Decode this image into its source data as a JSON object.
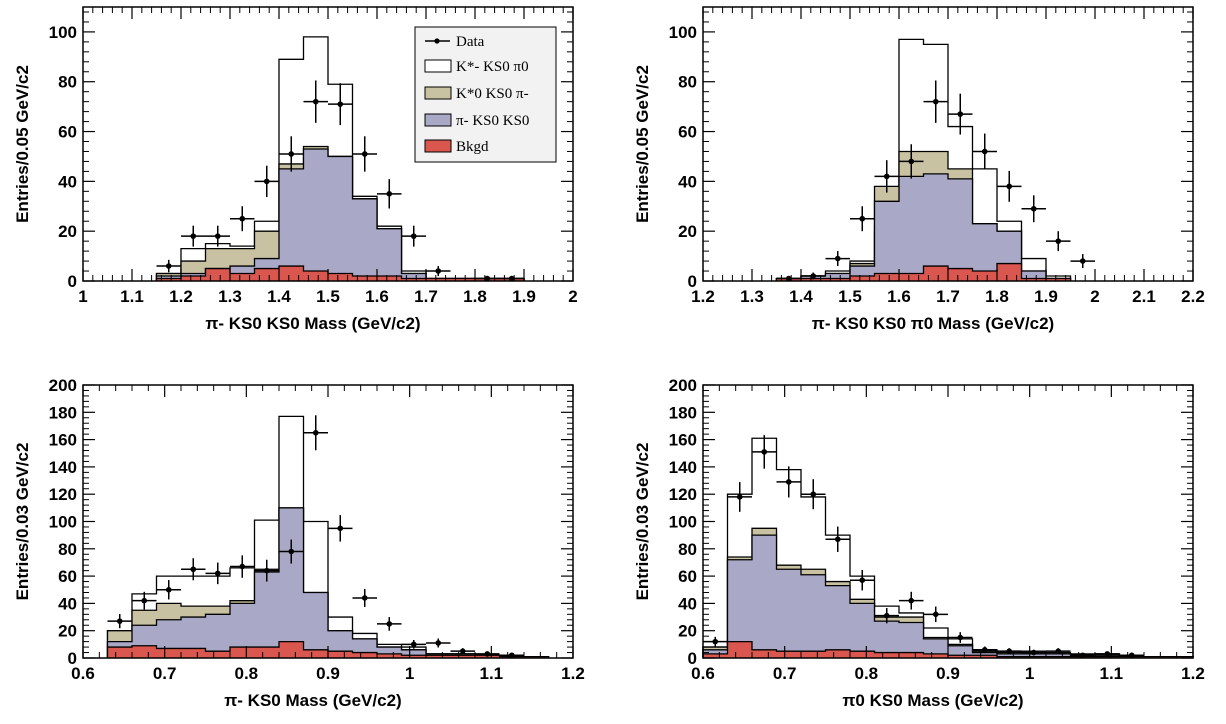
{
  "colors": {
    "total": "#ffffff",
    "kstar0": "#c8c2a2",
    "pikk": "#a9a8c6",
    "bkgd": "#d9574f",
    "line": "#000000"
  },
  "legend": {
    "data": "Data",
    "kstarminus": "K*- KS0 π0",
    "kstar0": "K*0 KS0 π-",
    "pikk": "π- KS0 KS0",
    "bkgd": "Bkgd"
  },
  "chart_data": [
    {
      "type": "bar",
      "panel": "top-left",
      "xlabel": "π- KS0 KS0 Mass (GeV/c2)",
      "ylabel": "Entries/0.05 GeV/c2",
      "xlim": [
        1.0,
        2.0
      ],
      "ylim": [
        0,
        110
      ],
      "xticks": [
        1,
        1.1,
        1.2,
        1.3,
        1.4,
        1.5,
        1.6,
        1.7,
        1.8,
        1.9,
        2
      ],
      "xtick_labels": [
        "1",
        "1.1",
        "1.2",
        "1.3",
        "1.4",
        "1.5",
        "1.6",
        "1.7",
        "1.8",
        "1.9",
        "2"
      ],
      "yticks": [
        0,
        20,
        40,
        60,
        80,
        100
      ],
      "ytick_labels": [
        "0",
        "20",
        "40",
        "60",
        "80",
        "100"
      ],
      "legend_position": "top-right",
      "bin_width": 0.05,
      "bins_start": 1.15,
      "series": [
        {
          "name": "K*- KS0 π0",
          "stacked_total": [
            3,
            13,
            15,
            14,
            24,
            89,
            98,
            79,
            34,
            22,
            4,
            1,
            1,
            1,
            1
          ]
        },
        {
          "name": "K*0 KS0 π-",
          "stacked_total": [
            3,
            8,
            13,
            13,
            20,
            47,
            54,
            50,
            33,
            21,
            3,
            1,
            1,
            1,
            1
          ]
        },
        {
          "name": "π- KS0 KS0",
          "stacked_total": [
            2,
            3,
            5,
            6,
            9,
            45,
            53,
            50,
            33,
            21,
            3,
            1,
            1,
            1,
            1
          ]
        },
        {
          "name": "Bkgd",
          "values": [
            1,
            2,
            5,
            3,
            5,
            6,
            4,
            3,
            2,
            2,
            1,
            1,
            1,
            1,
            1
          ]
        }
      ],
      "data_points": {
        "x": [
          1.175,
          1.225,
          1.275,
          1.325,
          1.375,
          1.425,
          1.475,
          1.525,
          1.575,
          1.625,
          1.675,
          1.725,
          1.825,
          1.875
        ],
        "y": [
          6,
          18,
          18,
          25,
          40,
          51,
          72,
          71,
          51,
          35,
          18,
          4,
          1,
          1
        ],
        "err": [
          2.5,
          4.2,
          4.2,
          5.0,
          6.3,
          7.1,
          8.5,
          8.4,
          7.1,
          5.9,
          4.2,
          2.0,
          1,
          1
        ]
      }
    },
    {
      "type": "bar",
      "panel": "top-right",
      "xlabel": "π- KS0 KS0 π0 Mass (GeV/c2)",
      "ylabel": "Entries/0.05 GeV/c2",
      "xlim": [
        1.2,
        2.2
      ],
      "ylim": [
        0,
        110
      ],
      "xticks": [
        1.2,
        1.3,
        1.4,
        1.5,
        1.6,
        1.7,
        1.8,
        1.9,
        2,
        2.1,
        2.2
      ],
      "xtick_labels": [
        "1.2",
        "1.3",
        "1.4",
        "1.5",
        "1.6",
        "1.7",
        "1.8",
        "1.9",
        "2",
        "2.1",
        "2.2"
      ],
      "yticks": [
        0,
        20,
        40,
        60,
        80,
        100
      ],
      "ytick_labels": [
        "0",
        "20",
        "40",
        "60",
        "80",
        "100"
      ],
      "bin_width": 0.05,
      "bins_start": 1.35,
      "series": [
        {
          "name": "K*- KS0 π0",
          "stacked_total": [
            1,
            2,
            4,
            8,
            20,
            97,
            95,
            62,
            45,
            24,
            9,
            2
          ]
        },
        {
          "name": "K*0 KS0 π-",
          "stacked_total": [
            1,
            2,
            3,
            7,
            38,
            52,
            52,
            45,
            23,
            20,
            4,
            1
          ]
        },
        {
          "name": "π- KS0 KS0",
          "stacked_total": [
            1,
            2,
            3,
            6,
            32,
            42,
            43,
            41,
            23,
            20,
            4,
            1
          ]
        },
        {
          "name": "Bkgd",
          "values": [
            1,
            1,
            1,
            2,
            3,
            3,
            6,
            5,
            4,
            7,
            1,
            1
          ]
        }
      ],
      "data_points": {
        "x": [
          1.375,
          1.425,
          1.475,
          1.525,
          1.575,
          1.625,
          1.675,
          1.725,
          1.775,
          1.825,
          1.875,
          1.925,
          1.975
        ],
        "y": [
          1,
          2,
          9,
          25,
          42,
          48,
          72,
          67,
          52,
          38,
          29,
          16,
          8
        ],
        "err": [
          1,
          1.4,
          3.0,
          5.0,
          6.5,
          6.9,
          8.5,
          8.2,
          7.2,
          6.2,
          5.4,
          4.0,
          2.8
        ]
      }
    },
    {
      "type": "bar",
      "panel": "bottom-left",
      "xlabel": "π- KS0 Mass (GeV/c2)",
      "ylabel": "Entries/0.03 GeV/c2",
      "xlim": [
        0.6,
        1.2
      ],
      "ylim": [
        0,
        200
      ],
      "xticks": [
        0.6,
        0.7,
        0.8,
        0.9,
        1,
        1.1,
        1.2
      ],
      "xtick_labels": [
        "0.6",
        "0.7",
        "0.8",
        "0.9",
        "1",
        "1.1",
        "1.2"
      ],
      "yticks": [
        0,
        20,
        40,
        60,
        80,
        100,
        120,
        140,
        160,
        180,
        200
      ],
      "ytick_labels": [
        "0",
        "20",
        "40",
        "60",
        "80",
        "100",
        "120",
        "140",
        "160",
        "180",
        "200"
      ],
      "bin_width": 0.03,
      "bins_start": 0.63,
      "series": [
        {
          "name": "K*- KS0 π0",
          "stacked_total": [
            20,
            47,
            60,
            60,
            60,
            66,
            101,
            177,
            100,
            30,
            18,
            10,
            8,
            3,
            3,
            2,
            1,
            1
          ]
        },
        {
          "name": "K*0 KS0 π-",
          "stacked_total": [
            20,
            35,
            40,
            38,
            38,
            42,
            65,
            110,
            48,
            20,
            14,
            8,
            6,
            3,
            3,
            2,
            1,
            1
          ]
        },
        {
          "name": "π- KS0 KS0",
          "stacked_total": [
            12,
            24,
            28,
            30,
            32,
            40,
            63,
            110,
            48,
            20,
            14,
            8,
            6,
            3,
            3,
            2,
            1,
            1
          ]
        },
        {
          "name": "Bkgd",
          "values": [
            8,
            9,
            7,
            7,
            5,
            8,
            8,
            12,
            6,
            5,
            4,
            3,
            2,
            2,
            2,
            2,
            1,
            1
          ]
        }
      ],
      "data_points": {
        "x": [
          0.645,
          0.675,
          0.705,
          0.735,
          0.765,
          0.795,
          0.825,
          0.855,
          0.885,
          0.915,
          0.945,
          0.975,
          1.005,
          1.035,
          1.065,
          1.095,
          1.125
        ],
        "y": [
          27,
          42,
          50,
          65,
          62,
          67,
          64,
          78,
          165,
          95,
          44,
          25,
          10,
          11,
          5,
          3,
          2
        ],
        "err": [
          5.2,
          6.5,
          7.1,
          8.1,
          7.9,
          8.2,
          8.0,
          8.8,
          12.8,
          9.7,
          6.6,
          5.0,
          3.2,
          3.3,
          2.2,
          1.7,
          1.4
        ]
      }
    },
    {
      "type": "bar",
      "panel": "bottom-right",
      "xlabel": "π0 KS0 Mass (GeV/c2)",
      "ylabel": "Entries/0.03 GeV/c2",
      "xlim": [
        0.6,
        1.2
      ],
      "ylim": [
        0,
        200
      ],
      "xticks": [
        0.6,
        0.7,
        0.8,
        0.9,
        1,
        1.1,
        1.2
      ],
      "xtick_labels": [
        "0.6",
        "0.7",
        "0.8",
        "0.9",
        "1",
        "1.1",
        "1.2"
      ],
      "yticks": [
        0,
        20,
        40,
        60,
        80,
        100,
        120,
        140,
        160,
        180,
        200
      ],
      "ytick_labels": [
        "0",
        "20",
        "40",
        "60",
        "80",
        "100",
        "120",
        "140",
        "160",
        "180",
        "200"
      ],
      "bin_width": 0.03,
      "bins_start": 0.6,
      "series": [
        {
          "name": "K*- KS0 π0",
          "stacked_total": [
            8,
            120,
            161,
            138,
            118,
            90,
            60,
            38,
            33,
            22,
            14,
            6,
            5,
            5,
            4,
            3,
            3,
            1,
            1,
            1
          ]
        },
        {
          "name": "K*0 KS0 π-",
          "stacked_total": [
            8,
            74,
            95,
            68,
            65,
            56,
            43,
            30,
            30,
            15,
            10,
            5,
            4,
            4,
            3,
            2,
            2,
            1,
            1,
            1
          ]
        },
        {
          "name": "π- KS0 KS0",
          "stacked_total": [
            6,
            72,
            90,
            65,
            61,
            53,
            40,
            27,
            26,
            14,
            9,
            4,
            3,
            3,
            3,
            2,
            2,
            1,
            1,
            1
          ]
        },
        {
          "name": "Bkgd",
          "values": [
            3,
            12,
            6,
            5,
            5,
            6,
            5,
            4,
            4,
            3,
            2,
            2,
            1,
            1,
            1,
            1,
            1,
            1,
            1,
            1
          ]
        }
      ],
      "data_points": {
        "x": [
          0.615,
          0.645,
          0.675,
          0.705,
          0.735,
          0.765,
          0.795,
          0.825,
          0.855,
          0.885,
          0.915,
          0.945,
          0.975,
          1.005,
          1.035,
          1.065,
          1.095,
          1.125
        ],
        "y": [
          12,
          118,
          151,
          129,
          120,
          87,
          57,
          31,
          42,
          32,
          15,
          6,
          5,
          4,
          5,
          2,
          3,
          2
        ],
        "err": [
          3.5,
          10.9,
          12.3,
          11.4,
          11.0,
          9.3,
          7.5,
          5.6,
          6.5,
          5.7,
          3.9,
          2.4,
          2.2,
          2.0,
          2.2,
          1.4,
          1.7,
          1.4
        ]
      }
    }
  ]
}
